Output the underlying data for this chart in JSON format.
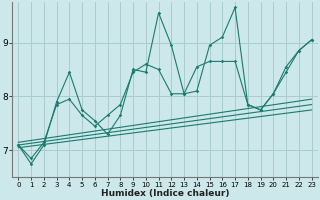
{
  "xlabel": "Humidex (Indice chaleur)",
  "bg_color": "#cce8ea",
  "grid_color": "#aacccc",
  "line_color": "#1a7a6e",
  "xlim": [
    -0.5,
    23.5
  ],
  "ylim": [
    6.5,
    9.75
  ],
  "yticks": [
    7,
    8,
    9
  ],
  "xticks": [
    0,
    1,
    2,
    3,
    4,
    5,
    6,
    7,
    8,
    9,
    10,
    11,
    12,
    13,
    14,
    15,
    16,
    17,
    18,
    19,
    20,
    21,
    22,
    23
  ],
  "series1_x": [
    0,
    1,
    2,
    3,
    4,
    5,
    6,
    7,
    8,
    9,
    10,
    11,
    12,
    13,
    14,
    15,
    16,
    17,
    18,
    19,
    20,
    21,
    22,
    23
  ],
  "series1_y": [
    7.1,
    6.75,
    7.1,
    7.9,
    8.45,
    7.75,
    7.55,
    7.3,
    7.65,
    8.5,
    8.45,
    9.55,
    8.95,
    8.05,
    8.1,
    8.95,
    9.1,
    9.65,
    7.85,
    7.75,
    8.05,
    8.45,
    8.85,
    9.05
  ],
  "series2_x": [
    0,
    1,
    2,
    3,
    4,
    5,
    6,
    7,
    8,
    9,
    10,
    11,
    12,
    13,
    14,
    15,
    16,
    17,
    18,
    19,
    20,
    21,
    22,
    23
  ],
  "series2_y": [
    7.1,
    6.85,
    7.15,
    7.85,
    7.95,
    7.65,
    7.45,
    7.65,
    7.85,
    8.45,
    8.6,
    8.5,
    8.05,
    8.05,
    8.55,
    8.65,
    8.65,
    8.65,
    7.85,
    7.75,
    8.05,
    8.55,
    8.85,
    9.05
  ],
  "trend1_x": [
    0,
    23
  ],
  "trend1_y": [
    7.05,
    7.75
  ],
  "trend2_x": [
    0,
    23
  ],
  "trend2_y": [
    7.1,
    7.85
  ],
  "trend3_x": [
    0,
    23
  ],
  "trend3_y": [
    7.15,
    7.95
  ]
}
